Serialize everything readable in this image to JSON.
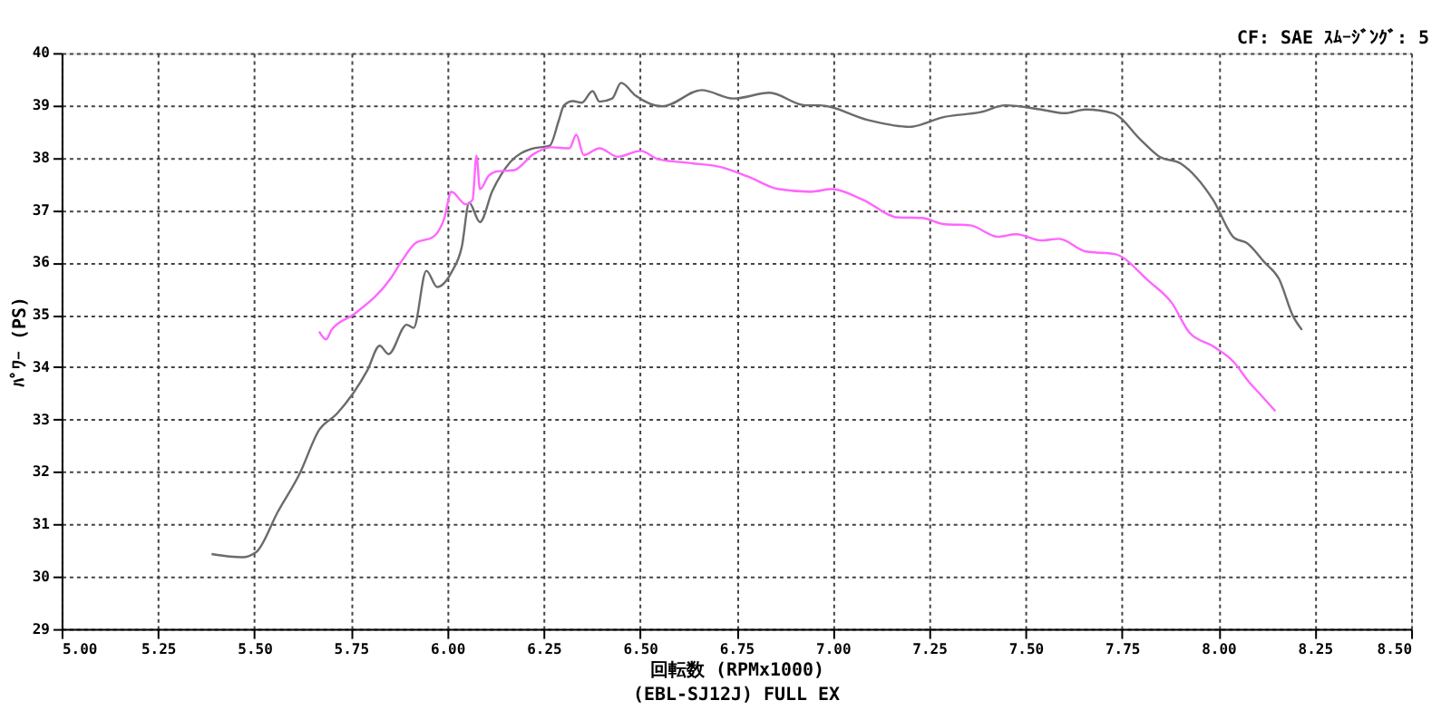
{
  "chart_data": {
    "type": "line",
    "xlabel": "回転数 (RPMx1000)",
    "ylabel": "ﾊﾟﾜｰ (PS)",
    "annotations": [
      "CF: SAE  ｽﾑｰｼﾞﾝｸﾞ: 5",
      "(EBL-SJ12J) FULL EX"
    ],
    "xlim": [
      5,
      8.5
    ],
    "ylim": [
      29,
      40
    ],
    "xticks": [
      {
        "value": 5,
        "label": "5.00"
      },
      {
        "value": 5.25,
        "label": "5.25"
      },
      {
        "value": 5.5,
        "label": "5.50"
      },
      {
        "value": 5.75,
        "label": "5.75"
      },
      {
        "value": 6,
        "label": "6.00"
      },
      {
        "value": 6.25,
        "label": "6.25"
      },
      {
        "value": 6.5,
        "label": "6.50"
      },
      {
        "value": 6.75,
        "label": "6.75"
      },
      {
        "value": 7,
        "label": "7.00"
      },
      {
        "value": 7.25,
        "label": "7.25"
      },
      {
        "value": 7.5,
        "label": "7.50"
      },
      {
        "value": 7.75,
        "label": "7.75"
      },
      {
        "value": 8,
        "label": "8.00"
      },
      {
        "value": 8.25,
        "label": "8.25"
      },
      {
        "value": 8.5,
        "label": "8.50"
      }
    ],
    "yticks": [
      29,
      30,
      31,
      32,
      33,
      34,
      35,
      36,
      37,
      38,
      39,
      40
    ],
    "grid": true,
    "legend": false,
    "line_style": "solid",
    "marker": "none",
    "series": [
      {
        "color": "#6b6b6b",
        "x": [
          5.389,
          5.468,
          5.505,
          5.561,
          5.617,
          5.668,
          5.714,
          5.793,
          5.825,
          5.848,
          5.895,
          5.913,
          5.946,
          5.974,
          6.011,
          6.038,
          6.057,
          6.085,
          6.117,
          6.164,
          6.219,
          6.266,
          6.289,
          6.303,
          6.326,
          6.349,
          6.377,
          6.395,
          6.428,
          6.451,
          6.488,
          6.558,
          6.66,
          6.743,
          6.836,
          6.929,
          6.966,
          7.091,
          7.198,
          7.29,
          7.383,
          7.448,
          7.54,
          7.601,
          7.656,
          7.726,
          7.8,
          7.847,
          7.902,
          7.986,
          8.041,
          8.074,
          8.12,
          8.157,
          8.194,
          8.217
        ],
        "values": [
          30.43,
          30.37,
          30.47,
          31.24,
          31.96,
          32.8,
          33.11,
          33.94,
          34.41,
          34.25,
          34.81,
          34.75,
          35.84,
          35.53,
          35.81,
          36.3,
          37.14,
          36.77,
          37.36,
          37.92,
          38.17,
          38.23,
          38.7,
          39.0,
          39.08,
          39.05,
          39.27,
          39.07,
          39.13,
          39.43,
          39.19,
          38.98,
          39.29,
          39.13,
          39.24,
          39.0,
          39.0,
          38.72,
          38.59,
          38.78,
          38.87,
          39.0,
          38.92,
          38.85,
          38.92,
          38.85,
          38.33,
          38.02,
          37.89,
          37.2,
          36.47,
          36.37,
          36.0,
          35.69,
          34.97,
          34.71
        ]
      },
      {
        "color": "#ff66ff",
        "x": [
          5.668,
          5.686,
          5.7,
          5.76,
          5.853,
          5.885,
          5.918,
          5.964,
          5.992,
          6.011,
          6.048,
          6.066,
          6.076,
          6.085,
          6.108,
          6.131,
          6.173,
          6.224,
          6.27,
          6.317,
          6.335,
          6.354,
          6.395,
          6.442,
          6.502,
          6.548,
          6.627,
          6.711,
          6.78,
          6.859,
          6.943,
          6.998,
          7.077,
          7.17,
          7.23,
          7.29,
          7.355,
          7.429,
          7.476,
          7.54,
          7.587,
          7.656,
          7.731,
          7.82,
          7.879,
          7.925,
          7.986,
          8.041,
          8.078,
          8.11,
          8.148
        ],
        "values": [
          34.68,
          34.53,
          34.71,
          35.02,
          35.69,
          36.06,
          36.37,
          36.49,
          36.83,
          37.35,
          37.11,
          37.2,
          38.04,
          37.4,
          37.66,
          37.74,
          37.76,
          38.07,
          38.2,
          38.18,
          38.44,
          38.05,
          38.18,
          38.02,
          38.13,
          37.97,
          37.9,
          37.82,
          37.64,
          37.4,
          37.35,
          37.4,
          37.2,
          36.86,
          36.85,
          36.73,
          36.71,
          36.49,
          36.54,
          36.42,
          36.45,
          36.21,
          36.16,
          35.64,
          35.23,
          34.66,
          34.4,
          34.09,
          33.73,
          33.47,
          33.16
        ]
      }
    ]
  }
}
